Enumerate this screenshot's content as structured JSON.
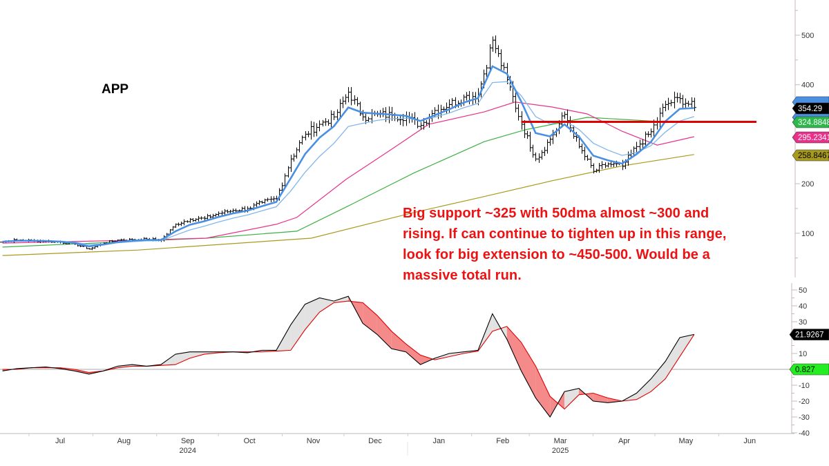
{
  "ticker": "APP",
  "annotation": {
    "lines": [
      "Big support ~325 with 50dma almost ~300 and",
      "rising. If can continue to tighten up in this range,",
      "look for big extension to ~450-500. Would be a",
      "massive total run."
    ],
    "color": "#ee1111"
  },
  "chart_data": [
    {
      "type": "line",
      "panel": "price",
      "style": "ohlc-bars with moving averages",
      "x_type": "date",
      "dates": [
        "2024-06-17",
        "2024-06-24",
        "2024-07-01",
        "2024-07-08",
        "2024-07-15",
        "2024-07-22",
        "2024-07-29",
        "2024-08-05",
        "2024-08-12",
        "2024-08-19",
        "2024-08-26",
        "2024-09-02",
        "2024-09-09",
        "2024-09-16",
        "2024-09-23",
        "2024-09-30",
        "2024-10-07",
        "2024-10-14",
        "2024-10-21",
        "2024-10-28",
        "2024-11-04",
        "2024-11-11",
        "2024-11-18",
        "2024-11-25",
        "2024-12-02",
        "2024-12-09",
        "2024-12-16",
        "2024-12-23",
        "2024-12-30",
        "2025-01-06",
        "2025-01-13",
        "2025-01-20",
        "2025-01-27",
        "2025-02-03",
        "2025-02-10",
        "2025-02-17",
        "2025-02-24",
        "2025-03-03",
        "2025-03-10",
        "2025-03-17",
        "2025-03-24",
        "2025-03-31",
        "2025-04-07",
        "2025-04-14",
        "2025-04-21",
        "2025-04-28",
        "2025-05-05",
        "2025-05-12",
        "2025-05-19"
      ],
      "closes": [
        83,
        86,
        85,
        84,
        82,
        78,
        68,
        80,
        86,
        87,
        88,
        86,
        118,
        128,
        130,
        140,
        146,
        150,
        162,
        170,
        250,
        300,
        320,
        335,
        385,
        335,
        340,
        338,
        335,
        318,
        348,
        360,
        375,
        380,
        490,
        410,
        320,
        250,
        290,
        340,
        275,
        225,
        240,
        235,
        275,
        305,
        360,
        372,
        354
      ],
      "moving_averages": [
        {
          "color": "#4a90e2",
          "kind": "fast-ema"
        },
        {
          "color": "#7fb6ec",
          "kind": "slow-ema"
        },
        {
          "color": "#e8318a",
          "kind": "50dma",
          "points": [
            [
              "2024-06-17",
              80
            ],
            [
              "2024-08-22",
              86
            ],
            [
              "2024-09-24",
              90
            ],
            [
              "2024-10-28",
              118
            ],
            [
              "2024-11-07",
              132
            ],
            [
              "2024-12-01",
              209
            ],
            [
              "2024-12-21",
              264
            ],
            [
              "2025-01-10",
              320
            ],
            [
              "2025-02-06",
              345
            ],
            [
              "2025-02-21",
              365
            ],
            [
              "2025-03-11",
              355
            ],
            [
              "2025-03-28",
              341
            ],
            [
              "2025-04-14",
              306
            ],
            [
              "2025-05-01",
              278
            ],
            [
              "2025-05-19",
              295
            ]
          ]
        },
        {
          "color": "#3cb043",
          "kind": "100dma",
          "points": [
            [
              "2024-06-17",
              72
            ],
            [
              "2024-09-24",
              90
            ],
            [
              "2024-11-07",
              104
            ],
            [
              "2024-12-01",
              153
            ],
            [
              "2025-01-03",
              222
            ],
            [
              "2025-02-06",
              285
            ],
            [
              "2025-02-26",
              309
            ],
            [
              "2025-03-28",
              334
            ],
            [
              "2025-05-01",
              326
            ],
            [
              "2025-05-19",
              325
            ]
          ]
        },
        {
          "color": "#a89a1c",
          "kind": "200dma",
          "points": [
            [
              "2024-06-17",
              55
            ],
            [
              "2024-08-22",
              66
            ],
            [
              "2024-11-14",
              90
            ],
            [
              "2025-01-03",
              142
            ],
            [
              "2025-02-06",
              174
            ],
            [
              "2025-03-11",
              206
            ],
            [
              "2025-04-14",
              236
            ],
            [
              "2025-05-19",
              259
            ]
          ]
        }
      ],
      "support_line": {
        "level": 325,
        "from": "2025-02-24",
        "color": "#e00000"
      },
      "yaxis": {
        "ticks": [
          100,
          200,
          400,
          500
        ],
        "ylim": [
          0,
          560
        ],
        "side": "right"
      },
      "value_tags": [
        {
          "label": "354.29",
          "value": 354.29,
          "bg": "#000000",
          "fg": "#ffffff"
        },
        {
          "label": "324.8848",
          "value": 324.8848,
          "bg": "#2db84a",
          "fg": "#ffffff"
        },
        {
          "label": "295.2341",
          "value": 295.2341,
          "bg": "#e8318a",
          "fg": "#ffffff"
        },
        {
          "label": "258.8467",
          "value": 258.8467,
          "bg": "#a89a1c",
          "fg": "#000000"
        }
      ],
      "hidden_tag_colors": [
        "#4a90e2",
        "#4a90e2"
      ]
    },
    {
      "type": "line",
      "panel": "oscillator",
      "x_type": "date",
      "series": [
        {
          "color": "#000000",
          "values": [
            -1,
            0.5,
            1,
            1.5,
            0.5,
            -1,
            -3,
            -1,
            2,
            3,
            2,
            3,
            9.5,
            11,
            11,
            11,
            11,
            10.5,
            12,
            12,
            28,
            41,
            45,
            43,
            46,
            29,
            22,
            13,
            11,
            3,
            7,
            10,
            11,
            12,
            35,
            19,
            -1,
            -18,
            -30,
            -14,
            -12,
            -20,
            -21,
            -20,
            -15,
            -6,
            5,
            20,
            22
          ]
        },
        {
          "color": "#e00000",
          "values": [
            0,
            0,
            1,
            1,
            1,
            0,
            -2,
            -1,
            1,
            2,
            2,
            2.5,
            3,
            7,
            9.5,
            10.5,
            11,
            11,
            11,
            11.5,
            12,
            25,
            36,
            42,
            43,
            42,
            34,
            24,
            16,
            9,
            6,
            8,
            10,
            11.5,
            24,
            27,
            17,
            2,
            -17,
            -25,
            -16,
            -15,
            -18,
            -20,
            -19,
            -14,
            -6,
            8,
            21.9
          ]
        }
      ],
      "fill_above_color": "#e2e2e2",
      "fill_below_color": "#f48a8a",
      "zero_line": 0,
      "yaxis": {
        "ticks": [
          50,
          40,
          30,
          10,
          -10,
          -20,
          -30,
          -40
        ],
        "ylim": [
          -45,
          52
        ],
        "side": "right"
      },
      "value_tags": [
        {
          "label": "21.9267",
          "value": 21.9267,
          "bg": "#000000",
          "fg": "#ffffff"
        },
        {
          "label": "0.827",
          "value": 0.827,
          "bg": "#22ee22",
          "fg": "#000000",
          "at_zero": true
        }
      ]
    }
  ],
  "xaxis": {
    "months": [
      {
        "label": "Jul",
        "date": "2024-07-15"
      },
      {
        "label": "Aug",
        "date": "2024-08-15"
      },
      {
        "label": "Sep",
        "date": "2024-09-15"
      },
      {
        "label": "Oct",
        "date": "2024-10-15"
      },
      {
        "label": "Nov",
        "date": "2024-11-15"
      },
      {
        "label": "Dec",
        "date": "2024-12-15"
      },
      {
        "label": "Jan",
        "date": "2025-01-15"
      },
      {
        "label": "Feb",
        "date": "2025-02-15"
      },
      {
        "label": "Mar",
        "date": "2025-03-15"
      },
      {
        "label": "Apr",
        "date": "2025-04-15"
      },
      {
        "label": "May",
        "date": "2025-05-15"
      },
      {
        "label": "Jun",
        "date": "2025-06-15"
      }
    ],
    "years": [
      {
        "label": "2024",
        "date": "2024-09-15"
      },
      {
        "label": "2025",
        "date": "2025-03-15"
      }
    ]
  }
}
